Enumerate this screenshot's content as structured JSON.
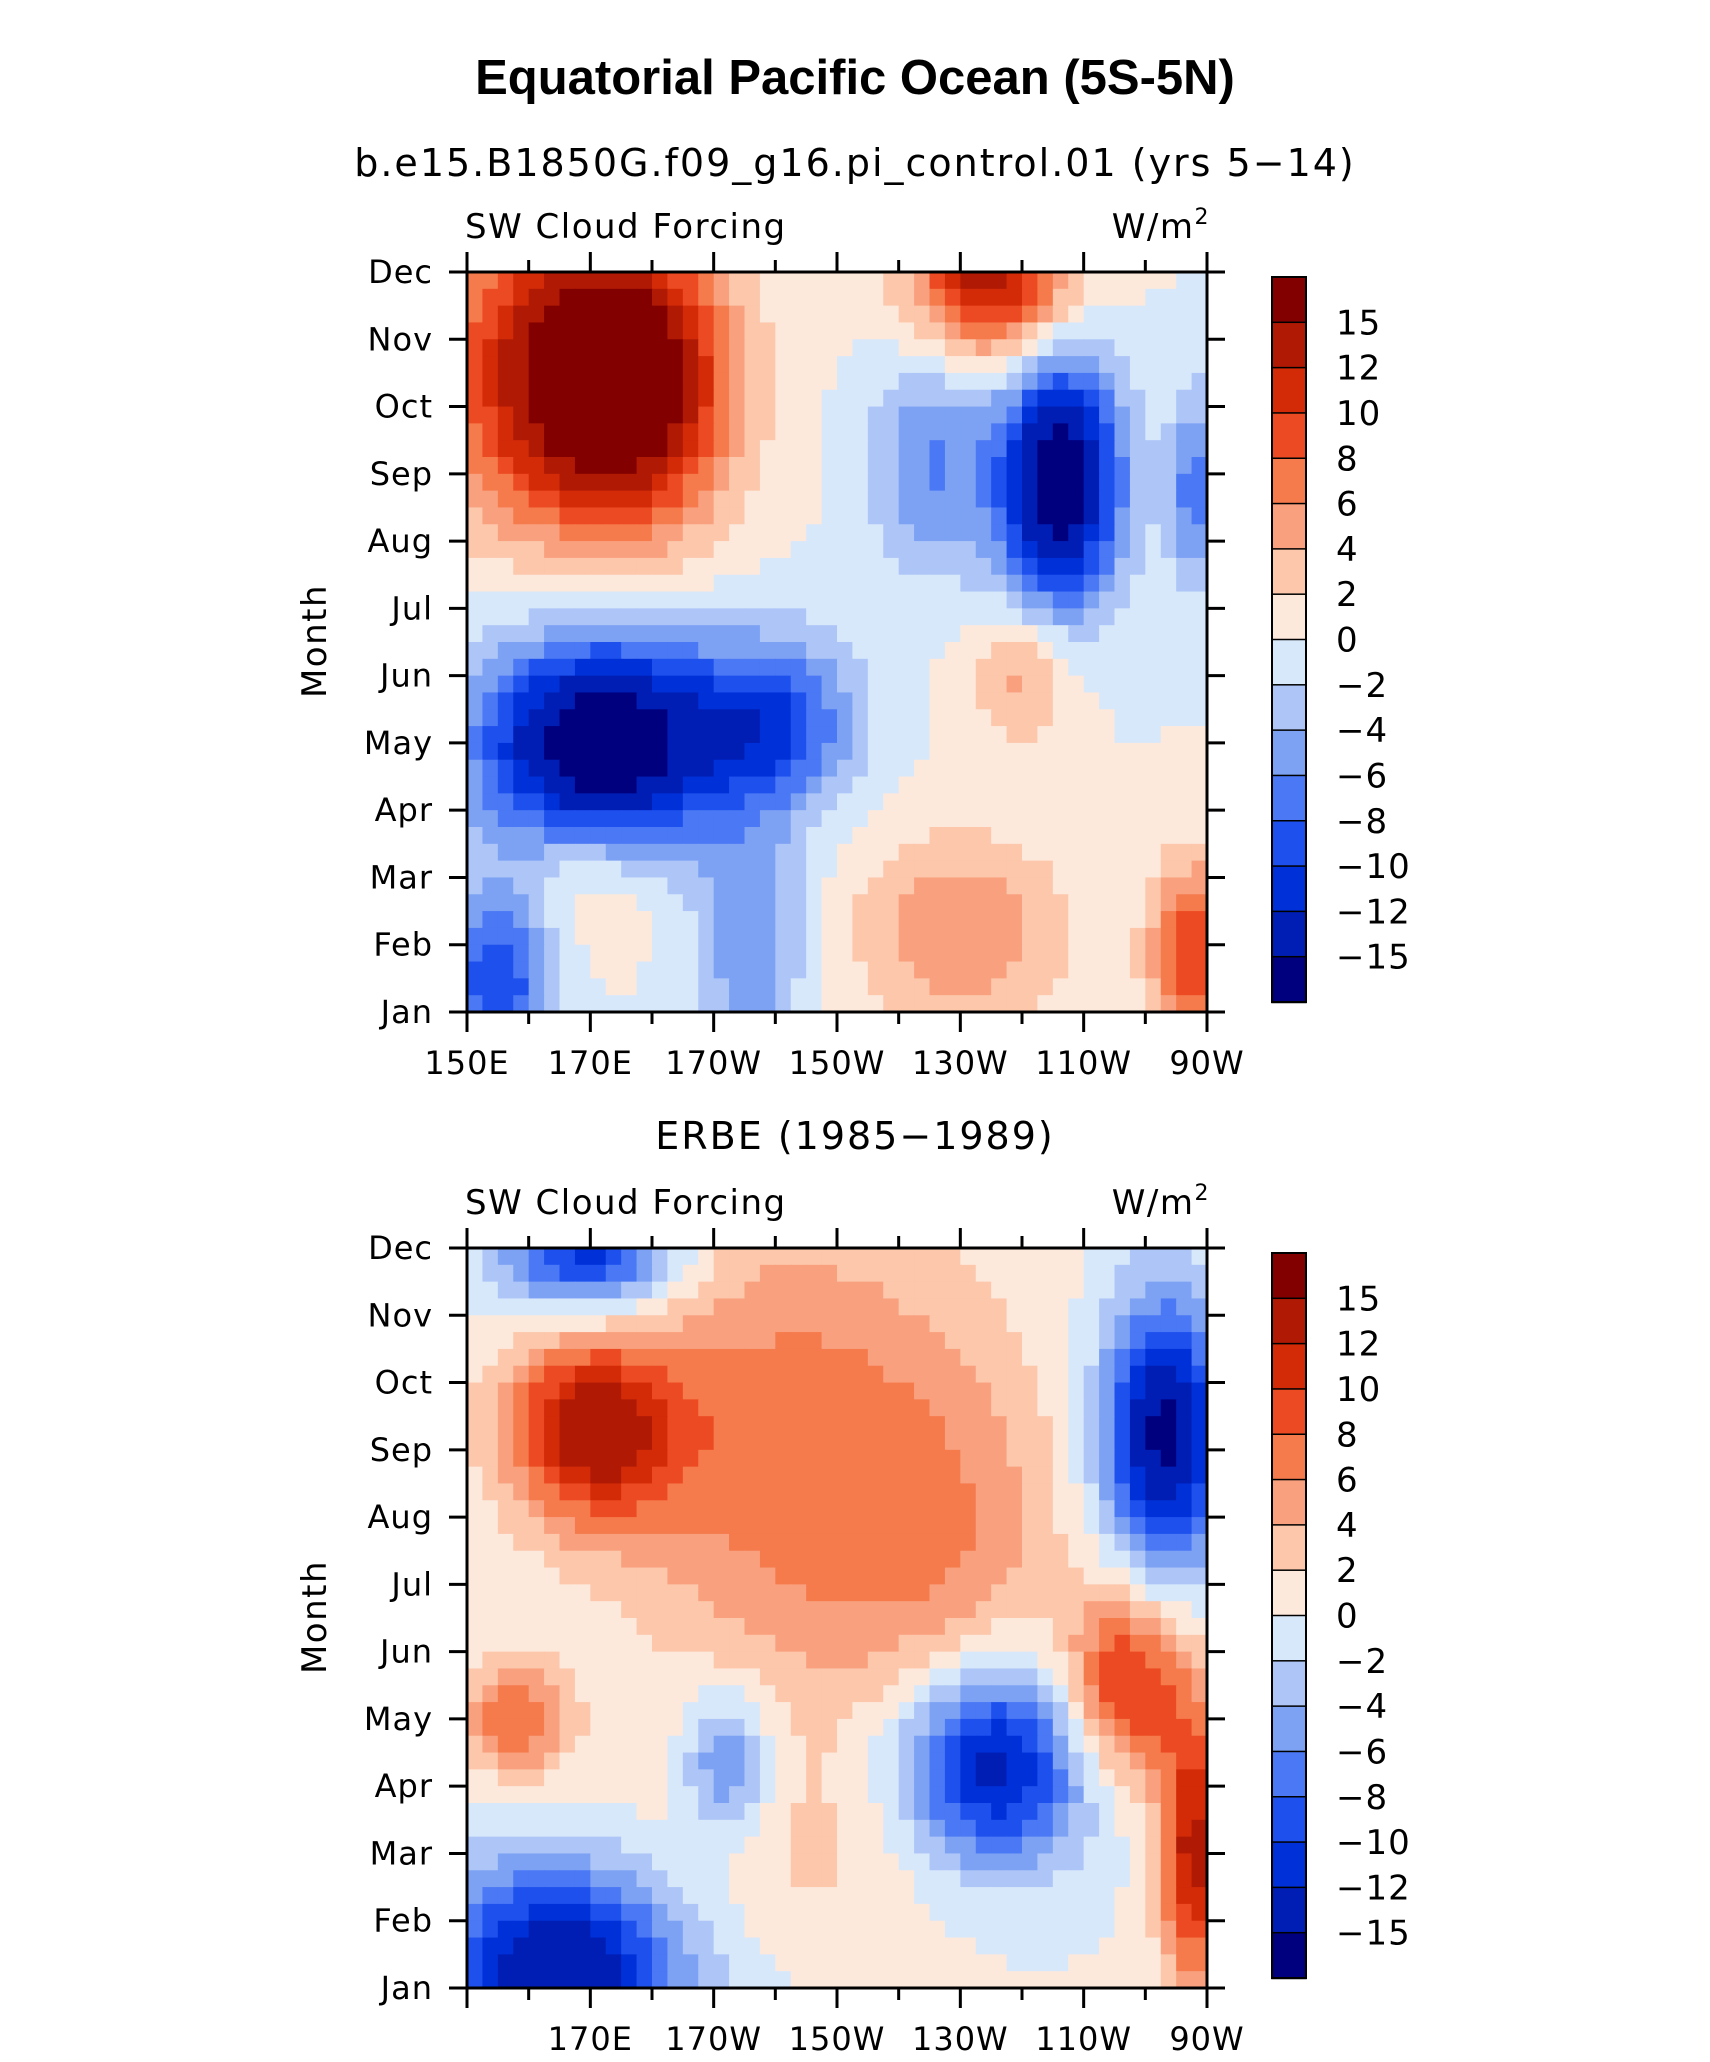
{
  "figure_title": "Equatorial Pacific Ocean (5S-5N)",
  "colors": [
    "#00007f",
    "#001eb4",
    "#0031d8",
    "#1e50ee",
    "#4b78f4",
    "#7da2f4",
    "#aec6f7",
    "#d8e8fb",
    "#fde9dc",
    "#fcc7ab",
    "#f9a17f",
    "#f57a4c",
    "#ec4a22",
    "#d32b08",
    "#b01a05",
    "#830000"
  ],
  "colorbar": {
    "labels": [
      "15",
      "12",
      "10",
      "8",
      "6",
      "4",
      "2",
      "0",
      "−10",
      "−12",
      "−15"
    ],
    "neg_labels": [
      "−2",
      "−4",
      "−6",
      "−8"
    ]
  },
  "chart_data": [
    {
      "type": "heatmap",
      "subtitle": "b.e15.B1850G.f09_g16.pi_control.01 (yrs 5−14)",
      "variable": "SW Cloud Forcing",
      "units_prefix": "W/m",
      "units_exp": "2",
      "ylabel": "Month",
      "y_ticks": [
        "Jan",
        "Feb",
        "Mar",
        "Apr",
        "May",
        "Jun",
        "Jul",
        "Aug",
        "Sep",
        "Oct",
        "Nov",
        "Dec"
      ],
      "x_ticks": [
        "150E",
        "170E",
        "170W",
        "150W",
        "130W",
        "110W",
        "90W"
      ],
      "x_range": [
        150,
        270
      ],
      "y_range": [
        0,
        11
      ],
      "levels": [
        -15,
        -12,
        -10,
        -8,
        -6,
        -4,
        -2,
        0,
        2,
        4,
        6,
        8,
        10,
        12,
        15
      ],
      "features": [
        {
          "lon": 167,
          "month": 9.5,
          "value": 16,
          "spread_lon": 14,
          "spread_month": 1.6
        },
        {
          "lon": 178,
          "month": 9.3,
          "value": 10,
          "spread_lon": 10,
          "spread_month": 1.4
        },
        {
          "lon": 235,
          "month": 11,
          "value": 14,
          "spread_lon": 9,
          "spread_month": 0.9
        },
        {
          "lon": 246,
          "month": 7.9,
          "value": -18,
          "spread_lon": 7,
          "spread_month": 1.3
        },
        {
          "lon": 225,
          "month": 8.2,
          "value": -6,
          "spread_lon": 7,
          "spread_month": 1.2
        },
        {
          "lon": 268,
          "month": 7.8,
          "value": -7,
          "spread_lon": 3,
          "spread_month": 1.0
        },
        {
          "lon": 172,
          "month": 4.0,
          "value": -19,
          "spread_lon": 14,
          "spread_month": 1.1
        },
        {
          "lon": 200,
          "month": 4.3,
          "value": -9,
          "spread_lon": 9,
          "spread_month": 0.9
        },
        {
          "lon": 240,
          "month": 5.0,
          "value": 5,
          "spread_lon": 6,
          "spread_month": 0.7
        },
        {
          "lon": 170,
          "month": 2.0,
          "value": 3,
          "spread_lon": 8,
          "spread_month": 0.7
        },
        {
          "lon": 155,
          "month": 0.4,
          "value": -10,
          "spread_lon": 6,
          "spread_month": 1.0
        },
        {
          "lon": 196,
          "month": 1.0,
          "value": -6,
          "spread_lon": 6,
          "spread_month": 1.2
        },
        {
          "lon": 230,
          "month": 1.2,
          "value": 6,
          "spread_lon": 12,
          "spread_month": 1.0
        },
        {
          "lon": 268,
          "month": 0.8,
          "value": 10,
          "spread_lon": 5,
          "spread_month": 1.0
        }
      ]
    },
    {
      "type": "heatmap",
      "subtitle": "ERBE (1985−1989)",
      "variable": "SW Cloud Forcing",
      "units_prefix": "W/m",
      "units_exp": "2",
      "ylabel": "Month",
      "y_ticks": [
        "Jan",
        "Feb",
        "Mar",
        "Apr",
        "May",
        "Jun",
        "Jul",
        "Aug",
        "Sep",
        "Oct",
        "Nov",
        "Dec"
      ],
      "x_ticks": [
        "170E",
        "170W",
        "150W",
        "130W",
        "110W",
        "90W"
      ],
      "x_range": [
        150,
        270
      ],
      "y_range": [
        0,
        11
      ],
      "levels": [
        -15,
        -12,
        -10,
        -8,
        -6,
        -4,
        -2,
        0,
        2,
        4,
        6,
        8,
        10,
        12,
        15
      ],
      "features": [
        {
          "lon": 170,
          "month": 11,
          "value": -12,
          "spread_lon": 10,
          "spread_month": 0.7
        },
        {
          "lon": 170,
          "month": 8.3,
          "value": 13,
          "spread_lon": 10,
          "spread_month": 1.0
        },
        {
          "lon": 200,
          "month": 8,
          "value": 7,
          "spread_lon": 18,
          "spread_month": 2.5
        },
        {
          "lon": 228,
          "month": 6.5,
          "value": 5,
          "spread_lon": 14,
          "spread_month": 2.5
        },
        {
          "lon": 263,
          "month": 8.2,
          "value": -16,
          "spread_lon": 7,
          "spread_month": 1.4
        },
        {
          "lon": 235,
          "month": 3.3,
          "value": -15,
          "spread_lon": 11,
          "spread_month": 1.1
        },
        {
          "lon": 192,
          "month": 3.3,
          "value": -7,
          "spread_lon": 5,
          "spread_month": 0.8
        },
        {
          "lon": 158,
          "month": 4.0,
          "value": 8,
          "spread_lon": 6,
          "spread_month": 0.6
        },
        {
          "lon": 165,
          "month": 0.3,
          "value": -15,
          "spread_lon": 14,
          "spread_month": 1.1
        },
        {
          "lon": 257,
          "month": 4.5,
          "value": 11,
          "spread_lon": 7,
          "spread_month": 1.0
        },
        {
          "lon": 268,
          "month": 2.0,
          "value": 13,
          "spread_lon": 4,
          "spread_month": 1.4
        },
        {
          "lon": 205,
          "month": 2.0,
          "value": 2,
          "spread_lon": 25,
          "spread_month": 1.0
        }
      ]
    }
  ]
}
